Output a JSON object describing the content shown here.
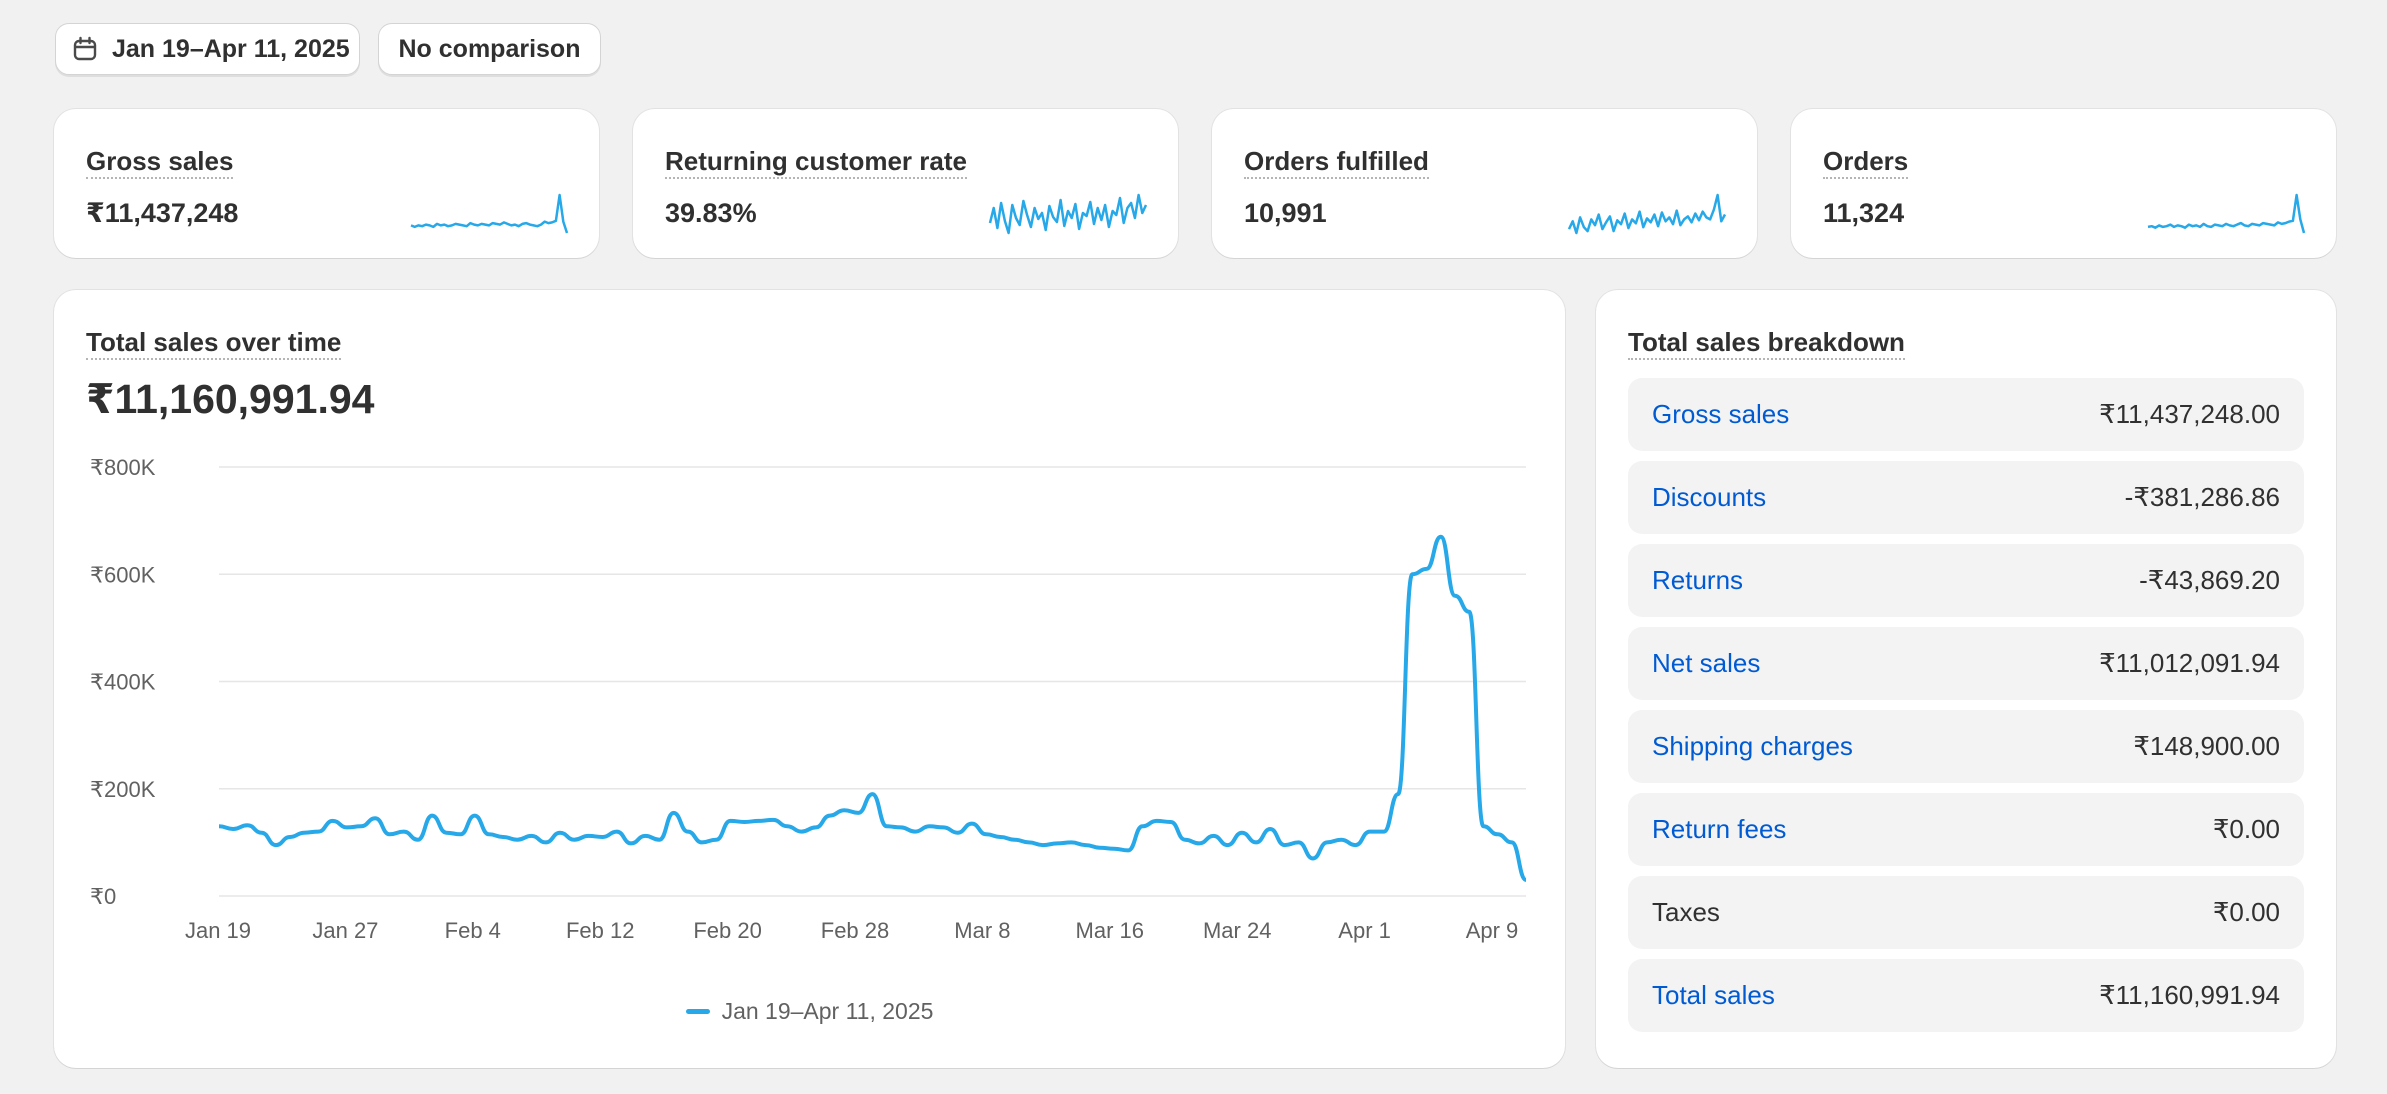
{
  "toolbar": {
    "date_range_label": "Jan 19–Apr 11, 2025",
    "comparison_label": "No comparison"
  },
  "metrics": [
    {
      "label": "Gross sales",
      "value": "₹11,437,248",
      "sparkline": [
        30,
        28,
        30,
        29,
        31,
        30,
        28,
        32,
        30,
        31,
        29,
        30,
        32,
        31,
        30,
        29,
        33,
        31,
        30,
        32,
        31,
        30,
        33,
        32,
        31,
        34,
        32,
        30,
        31,
        29,
        32,
        33,
        31,
        30,
        29,
        31,
        35,
        33,
        34,
        36,
        70,
        35,
        20
      ]
    },
    {
      "label": "Returning customer rate",
      "value": "39.83%",
      "sparkline": [
        40,
        55,
        35,
        60,
        42,
        30,
        58,
        45,
        38,
        62,
        48,
        36,
        55,
        44,
        50,
        33,
        57,
        46,
        41,
        63,
        37,
        52,
        45,
        59,
        34,
        50,
        47,
        61,
        39,
        55,
        43,
        58,
        36,
        52,
        48,
        65,
        40,
        55,
        60,
        45,
        68,
        50,
        58
      ]
    },
    {
      "label": "Orders fulfilled",
      "value": "10,991",
      "sparkline": [
        40,
        48,
        36,
        52,
        42,
        38,
        50,
        44,
        55,
        40,
        47,
        53,
        38,
        49,
        45,
        56,
        41,
        50,
        46,
        58,
        42,
        51,
        47,
        55,
        43,
        57,
        48,
        52,
        45,
        59,
        44,
        50,
        53,
        47,
        56,
        49,
        58,
        52,
        50,
        60,
        75,
        48,
        55
      ]
    },
    {
      "label": "Orders",
      "value": "11,324",
      "sparkline": [
        30,
        31,
        29,
        32,
        30,
        31,
        33,
        30,
        32,
        31,
        29,
        33,
        31,
        32,
        30,
        34,
        31,
        30,
        33,
        32,
        31,
        34,
        32,
        31,
        33,
        35,
        32,
        31,
        34,
        33,
        32,
        35,
        34,
        33,
        32,
        36,
        34,
        35,
        37,
        38,
        72,
        40,
        22
      ]
    }
  ],
  "sales_chart": {
    "title": "Total sales over time",
    "total": "₹11,160,991.94",
    "legend": "Jan 19–Apr 11, 2025",
    "accent_color": "#27a8e8"
  },
  "chart_data": {
    "type": "line",
    "title": "Total sales over time",
    "xlabel": "",
    "ylabel": "",
    "ylim": [
      0,
      800000
    ],
    "yticks": [
      "₹0",
      "₹200K",
      "₹400K",
      "₹600K",
      "₹800K"
    ],
    "ytick_values": [
      0,
      200000,
      400000,
      600000,
      800000
    ],
    "xticks": [
      "Jan 19",
      "Jan 27",
      "Feb 4",
      "Feb 12",
      "Feb 20",
      "Feb 28",
      "Mar 8",
      "Mar 16",
      "Mar 24",
      "Apr 1",
      "Apr 9"
    ],
    "grid": true,
    "legend_position": "bottom-center",
    "series": [
      {
        "name": "Jan 19–Apr 11, 2025",
        "values": [
          130000,
          125000,
          132000,
          118000,
          95000,
          110000,
          118000,
          120000,
          140000,
          128000,
          130000,
          145000,
          115000,
          120000,
          105000,
          150000,
          118000,
          115000,
          150000,
          115000,
          110000,
          105000,
          112000,
          100000,
          118000,
          105000,
          112000,
          110000,
          120000,
          98000,
          112000,
          105000,
          155000,
          120000,
          100000,
          105000,
          140000,
          138000,
          140000,
          142000,
          130000,
          120000,
          128000,
          150000,
          160000,
          155000,
          190000,
          130000,
          128000,
          120000,
          130000,
          128000,
          118000,
          135000,
          115000,
          110000,
          105000,
          100000,
          95000,
          98000,
          100000,
          95000,
          90000,
          88000,
          85000,
          130000,
          140000,
          138000,
          105000,
          98000,
          112000,
          95000,
          118000,
          100000,
          125000,
          95000,
          100000,
          70000,
          100000,
          105000,
          95000,
          120000,
          120000,
          190000,
          600000,
          610000,
          670000,
          560000,
          530000,
          130000,
          115000,
          100000,
          30000
        ]
      }
    ]
  },
  "breakdown": {
    "title": "Total sales breakdown",
    "rows": [
      {
        "label": "Gross sales",
        "value": "₹11,437,248.00",
        "link": true
      },
      {
        "label": "Discounts",
        "value": "-₹381,286.86",
        "link": true
      },
      {
        "label": "Returns",
        "value": "-₹43,869.20",
        "link": true
      },
      {
        "label": "Net sales",
        "value": "₹11,012,091.94",
        "link": true
      },
      {
        "label": "Shipping charges",
        "value": "₹148,900.00",
        "link": true
      },
      {
        "label": "Return fees",
        "value": "₹0.00",
        "link": true
      },
      {
        "label": "Taxes",
        "value": "₹0.00",
        "link": false
      },
      {
        "label": "Total sales",
        "value": "₹11,160,991.94",
        "link": true
      }
    ]
  }
}
